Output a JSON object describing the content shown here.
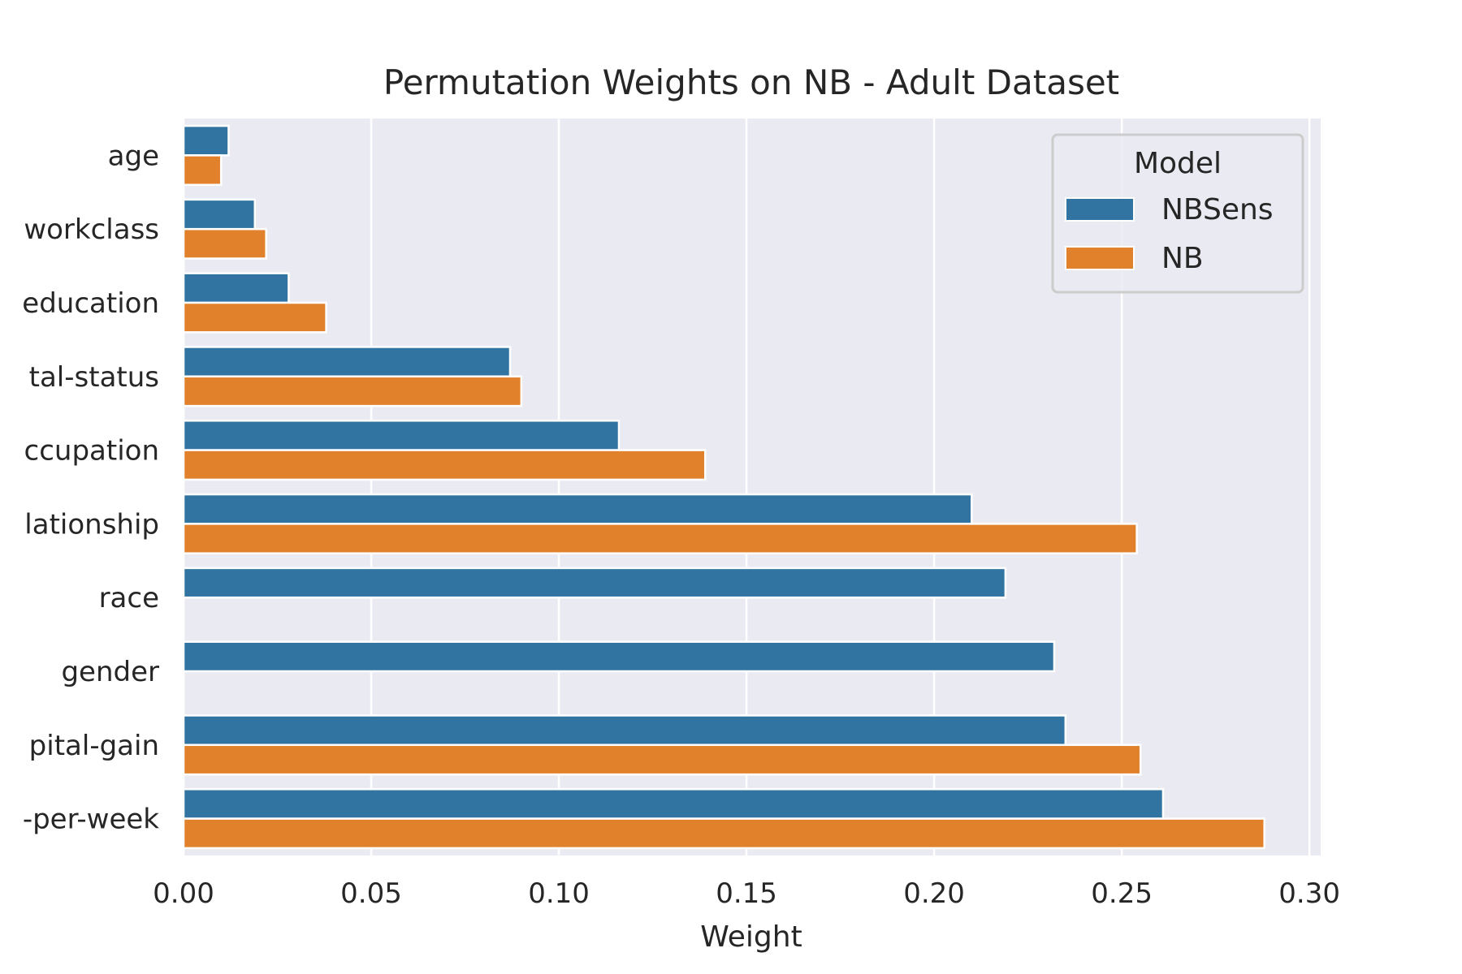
{
  "chart_data": {
    "type": "bar",
    "orientation": "horizontal",
    "title": "Permutation Weights on NB - Adult Dataset",
    "xlabel": "Weight",
    "ylabel": "",
    "xlim": [
      0,
      0.303
    ],
    "xticks": [
      "0.00",
      "0.05",
      "0.10",
      "0.15",
      "0.20",
      "0.25",
      "0.30"
    ],
    "xtick_values": [
      0,
      0.05,
      0.1,
      0.15,
      0.2,
      0.25,
      0.3
    ],
    "grid": true,
    "categories": [
      "age",
      "workclass",
      "education",
      "tal-status",
      "ccupation",
      "lationship",
      "race",
      "gender",
      "pital-gain",
      "-per-week"
    ],
    "series": [
      {
        "name": "NBSens",
        "color": "#3274a1",
        "values": [
          0.012,
          0.019,
          0.028,
          0.087,
          0.116,
          0.21,
          0.219,
          0.232,
          0.235,
          0.261
        ]
      },
      {
        "name": "NB",
        "color": "#e1812c",
        "values": [
          0.01,
          0.022,
          0.038,
          0.09,
          0.139,
          0.254,
          null,
          null,
          0.255,
          0.288
        ]
      }
    ],
    "legend": {
      "title": "Model",
      "placement": "top-right"
    }
  },
  "colors": {
    "plot_background": "#eaeaf2",
    "grid": "#ffffff",
    "text": "#262626"
  }
}
